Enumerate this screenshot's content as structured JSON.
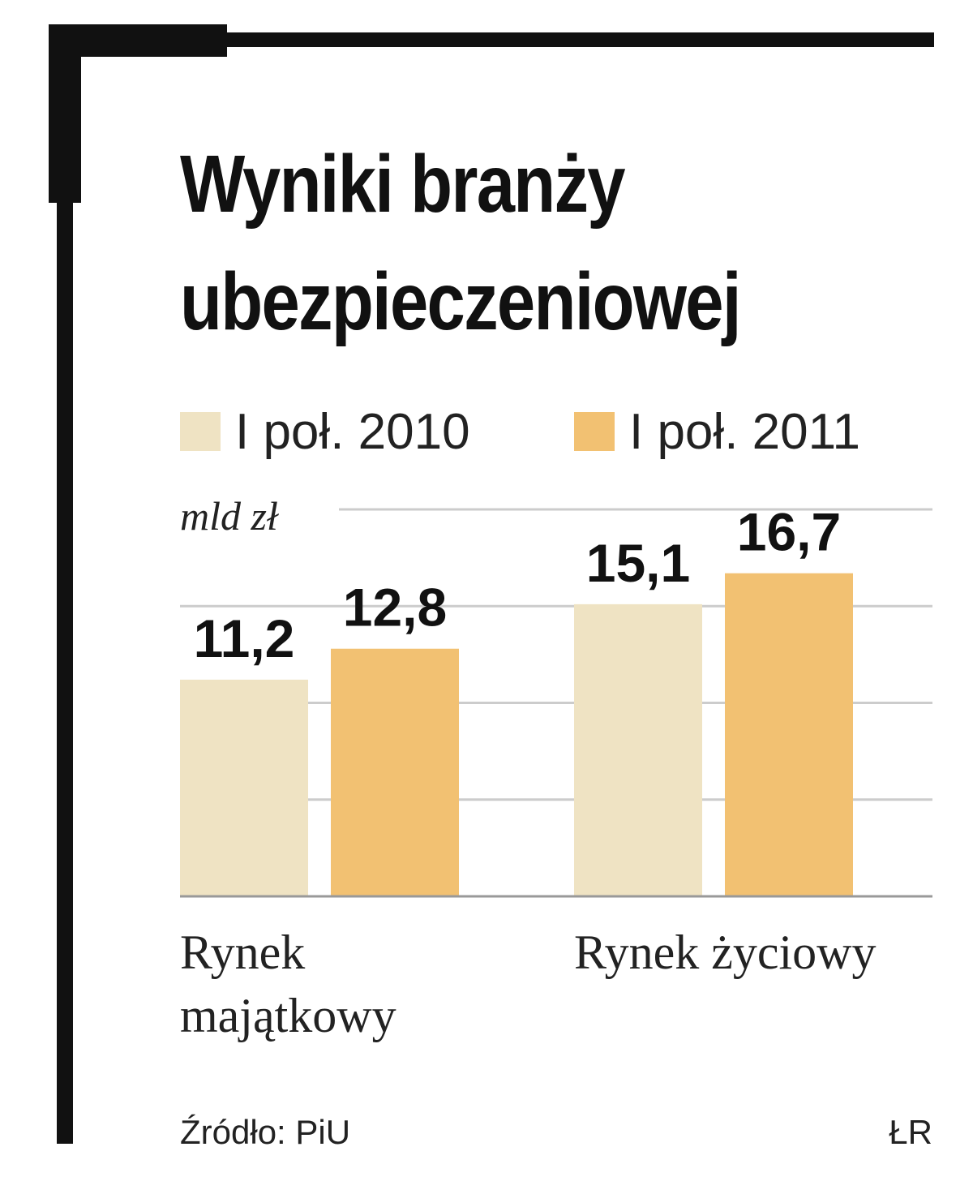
{
  "chart_data": {
    "type": "bar",
    "title": "Wyniki branży ubezpieczeniowej",
    "unit": "mld zł",
    "categories": [
      "Rynek majątkowy",
      "Rynek życiowy"
    ],
    "series": [
      {
        "name": "I poł. 2010",
        "color": "#efe3c3",
        "values": [
          11.2,
          15.1
        ],
        "value_labels": [
          "11,2",
          "15,1"
        ]
      },
      {
        "name": "I poł. 2011",
        "color": "#f2c172",
        "values": [
          12.8,
          16.7
        ],
        "value_labels": [
          "12,8",
          "16,7"
        ]
      }
    ],
    "ylim": [
      0,
      20
    ],
    "yticks": [
      0,
      5,
      10,
      15,
      20
    ],
    "grid": true,
    "source": "Źródło: PiU",
    "credit": "ŁR"
  }
}
